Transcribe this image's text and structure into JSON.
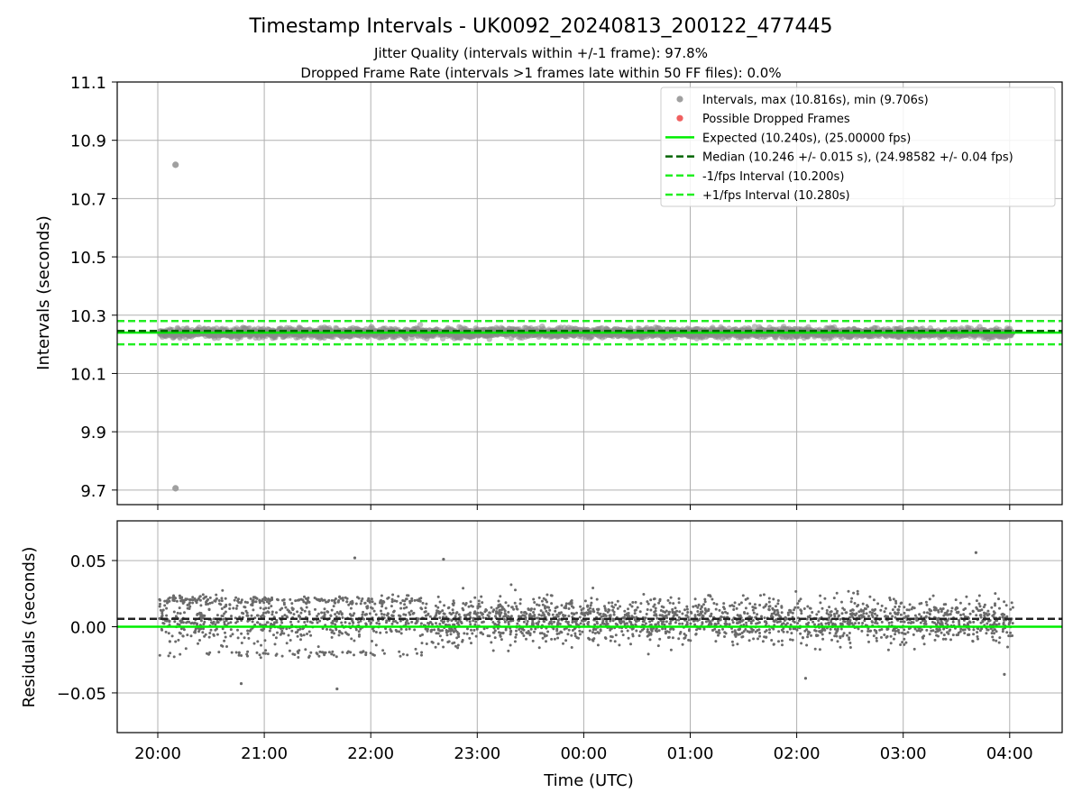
{
  "title": "Timestamp Intervals - UK0092_20240813_200122_477445",
  "subtitle1": "Jitter Quality (intervals within +/-1 frame): 97.8%",
  "subtitle2": "Dropped Frame Rate (intervals >1 frames late within 50 FF files): 0.0%",
  "chart_data": [
    {
      "type": "scatter",
      "panel": "intervals",
      "ylabel": "Intervals (seconds)",
      "ylim": [
        9.65,
        11.1
      ],
      "yticks": [
        "9.7",
        "9.9",
        "10.1",
        "10.3",
        "10.5",
        "10.7",
        "10.9",
        "11.1"
      ],
      "grid": true,
      "legend_position": "upper-right",
      "legend": [
        {
          "label": "Intervals, max (10.816s), min (9.706s)",
          "style": "marker",
          "color": "#a0a0a0"
        },
        {
          "label": "Possible Dropped Frames",
          "style": "marker",
          "color": "#f06060"
        },
        {
          "label": "Expected (10.240s), (25.00000 fps)",
          "style": "solid",
          "color": "#00ee00"
        },
        {
          "label": "Median (10.246 +/- 0.015 s), (24.98582 +/- 0.04 fps)",
          "style": "dashed",
          "color": "#006400"
        },
        {
          "label": "-1/fps Interval (10.200s)",
          "style": "dashed",
          "color": "#22ee22"
        },
        {
          "label": "+1/fps Interval (10.280s)",
          "style": "dashed",
          "color": "#22ee22"
        }
      ],
      "reference_lines": [
        {
          "name": "Expected",
          "y": 10.24,
          "color": "#00ee00",
          "dash": "solid"
        },
        {
          "name": "Median",
          "y": 10.246,
          "color": "#006400",
          "dash": "dashed"
        },
        {
          "name": "-1/fps Interval",
          "y": 10.2,
          "color": "#22ee22",
          "dash": "dashed"
        },
        {
          "name": "+1/fps Interval",
          "y": 10.28,
          "color": "#22ee22",
          "dash": "dashed"
        }
      ],
      "band": {
        "center": 10.24,
        "spread": 0.02,
        "x_start": "20:01",
        "x_end": "04:02",
        "approx_count": 2800
      },
      "outliers": [
        {
          "x": "20:10",
          "y": 10.816
        },
        {
          "x": "20:10",
          "y": 9.706
        }
      ]
    },
    {
      "type": "scatter",
      "panel": "residuals",
      "xlabel": "Time (UTC)",
      "ylabel": "Residuals (seconds)",
      "ylim": [
        -0.08,
        0.08
      ],
      "yticks": [
        "−0.05",
        "0.00",
        "0.05"
      ],
      "xticks": [
        "20:00",
        "21:00",
        "22:00",
        "23:00",
        "00:00",
        "01:00",
        "02:00",
        "03:00",
        "04:00"
      ],
      "grid": true,
      "reference_lines": [
        {
          "name": "Expected",
          "y": 0.0,
          "color": "#00ee00",
          "dash": "solid"
        },
        {
          "name": "Median",
          "y": 0.006,
          "color": "#222222",
          "dash": "dashed"
        }
      ],
      "cloud": {
        "center": 0.005,
        "spread": 0.02,
        "x_start": "20:01",
        "x_end": "04:02",
        "approx_count": 2800
      },
      "extremes": [
        {
          "x": "20:47",
          "y": -0.043
        },
        {
          "x": "21:41",
          "y": -0.047
        },
        {
          "x": "21:51",
          "y": 0.052
        },
        {
          "x": "22:41",
          "y": 0.051
        },
        {
          "x": "02:05",
          "y": -0.039
        },
        {
          "x": "03:41",
          "y": 0.056
        },
        {
          "x": "03:57",
          "y": -0.036
        }
      ]
    }
  ]
}
